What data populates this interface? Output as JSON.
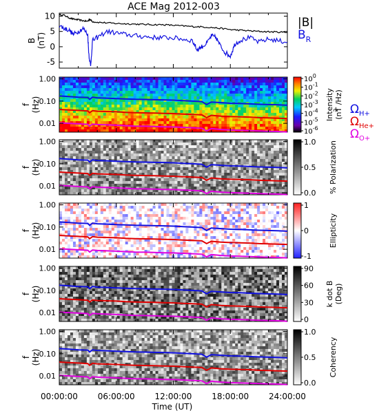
{
  "figure": {
    "title": "ACE Mag 2012-003",
    "xlabel": "Time (UT)",
    "x_ticks": [
      "00:00:00",
      "06:00:00",
      "12:00:00",
      "18:00:00",
      "24:00:00"
    ],
    "x_tick_hours": [
      0,
      6,
      12,
      18,
      24
    ]
  },
  "chart_data": [
    {
      "type": "line",
      "panel": "field",
      "ylabel_top": "B",
      "ylabel_bottom": "(nT)",
      "x_unit": "hours UT",
      "xlim": [
        0,
        24
      ],
      "ylim": [
        -7,
        11
      ],
      "y_ticks": [
        "10",
        "5",
        "0",
        "-5"
      ],
      "y_tick_values": [
        10,
        5,
        0,
        -5
      ],
      "legend": {
        "placement": "right",
        "labels": [
          "|B|",
          "B",
          "R"
        ]
      },
      "series": [
        {
          "name": "|B|",
          "color": "#000000",
          "x": [
            0,
            0.5,
            1,
            1.5,
            2,
            2.5,
            3,
            3.2,
            3.5,
            4,
            5,
            6,
            7,
            8,
            9,
            10,
            11,
            12,
            13,
            14,
            15,
            16,
            17,
            18,
            19,
            20,
            21,
            22,
            23,
            24
          ],
          "y": [
            10.5,
            10.3,
            9.5,
            9.0,
            8.8,
            8.5,
            8.3,
            9.0,
            8.2,
            8.0,
            7.8,
            7.6,
            7.5,
            7.4,
            7.3,
            7.2,
            7.2,
            7.0,
            6.8,
            6.6,
            6.5,
            6.3,
            6.0,
            5.6,
            5.4,
            5.2,
            5.0,
            4.9,
            4.8,
            4.7
          ]
        },
        {
          "name": "B",
          "color": "#1010e0",
          "x": [
            0,
            0.5,
            1,
            1.5,
            2,
            2.5,
            3,
            3.1,
            3.3,
            3.5,
            4,
            5,
            6,
            7,
            8,
            9,
            10,
            11,
            12,
            13,
            14,
            14.5,
            15,
            15.5,
            16,
            16.5,
            17,
            17.5,
            18,
            18.5,
            19,
            20,
            21,
            22,
            23,
            24
          ],
          "y": [
            7.0,
            6.0,
            5.5,
            4.0,
            5.0,
            6.0,
            4.0,
            -2.0,
            -6.5,
            2.0,
            3.0,
            5.0,
            4.5,
            4.0,
            3.6,
            3.3,
            3.0,
            3.0,
            2.9,
            2.5,
            2.0,
            -1.0,
            0.0,
            1.0,
            3.5,
            3.0,
            0.0,
            -2.0,
            -3.0,
            1.0,
            2.0,
            3.0,
            1.5,
            2.5,
            2.0,
            1.5
          ]
        }
      ]
    },
    {
      "type": "heatmap",
      "panel": "intensity",
      "ylabel_top": "f",
      "ylabel_bottom": "(Hz)",
      "xlim": [
        0,
        24
      ],
      "ylim": [
        0.004,
        1.2
      ],
      "y_scale": "log",
      "y_ticks": [
        "1.00",
        "0.10",
        "0.01"
      ],
      "y_tick_values": [
        1,
        0.1,
        0.01
      ],
      "colorbar": {
        "palette": "rainbow",
        "ticks": [
          "10",
          "10",
          "10",
          "10",
          "10",
          "10",
          "10"
        ],
        "tick_exponents": [
          "0",
          "-1",
          "-2",
          "-3",
          "-4",
          "-5",
          "-6"
        ],
        "label_top": "Intensity",
        "label_bottom": "(nT /Hz)",
        "label_bottom_sup": "2"
      },
      "legend": {
        "placement": "right",
        "symbol": "Ω",
        "labels": [
          "H+",
          "He+",
          "O+"
        ],
        "colors": [
          "#1010e0",
          "#e00000",
          "#e000e0"
        ]
      }
    },
    {
      "type": "heatmap",
      "panel": "polarization",
      "ylabel_top": "f",
      "ylabel_bottom": "(Hz)",
      "xlim": [
        0,
        24
      ],
      "y_scale": "log",
      "y_ticks": [
        "1.00",
        "0.10",
        "0.01"
      ],
      "y_tick_values": [
        1,
        0.1,
        0.01
      ],
      "colorbar": {
        "palette": "gray",
        "ticks": [
          "1.0",
          "0.5",
          "0.0"
        ],
        "tick_values": [
          1,
          0.5,
          0
        ],
        "label": "% Polarization"
      }
    },
    {
      "type": "heatmap",
      "panel": "ellipticity",
      "ylabel_top": "f",
      "ylabel_bottom": "(Hz)",
      "xlim": [
        0,
        24
      ],
      "y_scale": "log",
      "y_ticks": [
        "1.00",
        "0.10",
        "0.01"
      ],
      "y_tick_values": [
        1,
        0.1,
        0.01
      ],
      "colorbar": {
        "palette": "blue-white-red",
        "ticks": [
          "1",
          "0",
          "-1"
        ],
        "tick_values": [
          1,
          0,
          -1
        ],
        "label": "Ellipticity"
      }
    },
    {
      "type": "heatmap",
      "panel": "kdotb",
      "ylabel_top": "f",
      "ylabel_bottom": "(Hz)",
      "xlim": [
        0,
        24
      ],
      "y_scale": "log",
      "y_ticks": [
        "1.00",
        "0.10",
        "0.01"
      ],
      "y_tick_values": [
        1,
        0.1,
        0.01
      ],
      "colorbar": {
        "palette": "gray",
        "ticks": [
          "90",
          "60",
          "30",
          "0"
        ],
        "tick_values": [
          90,
          60,
          30,
          0
        ],
        "label_top": "k dot B",
        "label_bottom": "(Deg)"
      }
    },
    {
      "type": "heatmap",
      "panel": "coherency",
      "ylabel_top": "f",
      "ylabel_bottom": "(Hz)",
      "xlim": [
        0,
        24
      ],
      "y_scale": "log",
      "y_ticks": [
        "1.00",
        "0.10",
        "0.01"
      ],
      "y_tick_values": [
        1,
        0.1,
        0.01
      ],
      "colorbar": {
        "palette": "gray",
        "ticks": [
          "1.0",
          "0.5",
          "0.0"
        ],
        "tick_values": [
          1,
          0.5,
          0
        ],
        "label": "Coherency"
      }
    }
  ],
  "gyro_lines": {
    "x": [
      0,
      1,
      2,
      3,
      3.2,
      3.5,
      4,
      5,
      6,
      7,
      8,
      9,
      10,
      11,
      12,
      13,
      14,
      15,
      15.5,
      16,
      17,
      18,
      19,
      20,
      21,
      22,
      23,
      24
    ],
    "H+": [
      0.17,
      0.16,
      0.15,
      0.145,
      0.12,
      0.15,
      0.14,
      0.135,
      0.13,
      0.125,
      0.12,
      0.118,
      0.115,
      0.113,
      0.11,
      0.105,
      0.1,
      0.095,
      0.07,
      0.09,
      0.085,
      0.08,
      0.078,
      0.075,
      0.072,
      0.07,
      0.068,
      0.065
    ],
    "He+": [
      0.042,
      0.04,
      0.038,
      0.036,
      0.03,
      0.037,
      0.035,
      0.034,
      0.033,
      0.031,
      0.03,
      0.0295,
      0.029,
      0.028,
      0.0275,
      0.026,
      0.025,
      0.024,
      0.018,
      0.023,
      0.021,
      0.02,
      0.0195,
      0.019,
      0.018,
      0.0175,
      0.017,
      0.0165
    ],
    "O+": [
      0.0105,
      0.01,
      0.0095,
      0.009,
      0.0075,
      0.0092,
      0.0088,
      0.0085,
      0.0082,
      0.0078,
      0.0075,
      0.0074,
      0.0072,
      0.007,
      0.0069,
      0.0066,
      0.0063,
      0.006,
      0.0045,
      0.0058,
      0.0053,
      0.005,
      0.0049,
      0.0047,
      0.0045,
      0.0044,
      0.0043,
      0.0041
    ]
  },
  "colors": {
    "H+": "#1010e0",
    "He+": "#e00000",
    "O+": "#e000e0",
    "B": "#1010e0",
    "absB": "#000000"
  }
}
